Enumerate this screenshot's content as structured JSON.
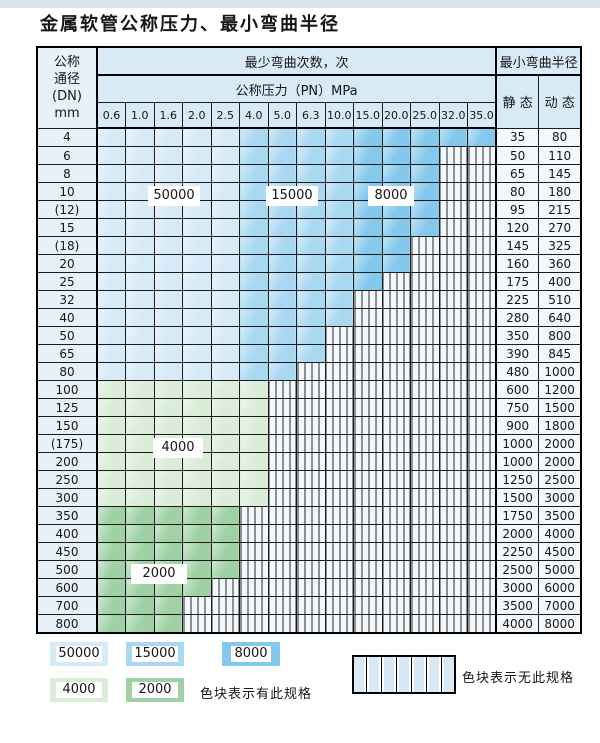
{
  "page": {
    "title": "金属软管公称压力、最小弯曲半径"
  },
  "colors": {
    "strip": "#d8e4ee",
    "header_bg": "#d9eaf7",
    "c50000": "#d6eaf7",
    "c15000": "#a9d8f1",
    "c8000": "#84c9ec",
    "c4000": "#dbecd9",
    "c2000": "#9fd1a5"
  },
  "header": {
    "dn_lines": [
      "公称",
      "通径",
      "(DN)",
      "mm"
    ],
    "cycles_label": "最少弯曲次数，次",
    "pressure_label": "公称压力（PN）MPa",
    "radius_label": "最小弯曲半径",
    "static_label": "静 态",
    "dynamic_label": "动 态",
    "pressure_columns": [
      "0.6",
      "1.0",
      "1.6",
      "2.0",
      "2.5",
      "4.0",
      "5.0",
      "6.3",
      "10.0",
      "15.0",
      "20.0",
      "25.0",
      "32.0",
      "35.0"
    ]
  },
  "zone_labels": {
    "z50000": "50000",
    "z15000": "15000",
    "z8000": "8000",
    "z4000": "4000",
    "z2000": "2000"
  },
  "rows": [
    {
      "dn": "4",
      "zone": "blue",
      "colored": 14,
      "static": "35",
      "dynamic": "80"
    },
    {
      "dn": "6",
      "zone": "blue",
      "colored": 12,
      "static": "50",
      "dynamic": "110"
    },
    {
      "dn": "8",
      "zone": "blue",
      "colored": 12,
      "static": "65",
      "dynamic": "145"
    },
    {
      "dn": "10",
      "zone": "blue",
      "colored": 12,
      "static": "80",
      "dynamic": "180"
    },
    {
      "dn": "(12)",
      "zone": "blue",
      "colored": 12,
      "static": "95",
      "dynamic": "215"
    },
    {
      "dn": "15",
      "zone": "blue",
      "colored": 12,
      "static": "120",
      "dynamic": "270"
    },
    {
      "dn": "(18)",
      "zone": "blue",
      "colored": 11,
      "static": "145",
      "dynamic": "325"
    },
    {
      "dn": "20",
      "zone": "blue",
      "colored": 11,
      "static": "160",
      "dynamic": "360"
    },
    {
      "dn": "25",
      "zone": "blue",
      "colored": 10,
      "static": "175",
      "dynamic": "400"
    },
    {
      "dn": "32",
      "zone": "blue",
      "colored": 9,
      "static": "225",
      "dynamic": "510"
    },
    {
      "dn": "40",
      "zone": "blue",
      "colored": 9,
      "static": "280",
      "dynamic": "640"
    },
    {
      "dn": "50",
      "zone": "blue",
      "colored": 8,
      "static": "350",
      "dynamic": "800"
    },
    {
      "dn": "65",
      "zone": "blue",
      "colored": 8,
      "static": "390",
      "dynamic": "845"
    },
    {
      "dn": "80",
      "zone": "blue",
      "colored": 7,
      "static": "480",
      "dynamic": "1000"
    },
    {
      "dn": "100",
      "zone": "g1",
      "colored": 6,
      "static": "600",
      "dynamic": "1200"
    },
    {
      "dn": "125",
      "zone": "g1",
      "colored": 6,
      "static": "750",
      "dynamic": "1500"
    },
    {
      "dn": "150",
      "zone": "g1",
      "colored": 6,
      "static": "900",
      "dynamic": "1800"
    },
    {
      "dn": "(175)",
      "zone": "g1",
      "colored": 6,
      "static": "1000",
      "dynamic": "2000"
    },
    {
      "dn": "200",
      "zone": "g1",
      "colored": 6,
      "static": "1000",
      "dynamic": "2000"
    },
    {
      "dn": "250",
      "zone": "g1",
      "colored": 6,
      "static": "1250",
      "dynamic": "2500"
    },
    {
      "dn": "300",
      "zone": "g1",
      "colored": 6,
      "static": "1500",
      "dynamic": "3000"
    },
    {
      "dn": "350",
      "zone": "g2",
      "colored": 5,
      "static": "1750",
      "dynamic": "3500"
    },
    {
      "dn": "400",
      "zone": "g2",
      "colored": 5,
      "static": "2000",
      "dynamic": "4000"
    },
    {
      "dn": "450",
      "zone": "g2",
      "colored": 5,
      "static": "2250",
      "dynamic": "4500"
    },
    {
      "dn": "500",
      "zone": "g2",
      "colored": 5,
      "static": "2500",
      "dynamic": "5000"
    },
    {
      "dn": "600",
      "zone": "g2",
      "colored": 4,
      "static": "3000",
      "dynamic": "6000"
    },
    {
      "dn": "700",
      "zone": "g2",
      "colored": 3,
      "static": "3500",
      "dynamic": "7000"
    },
    {
      "dn": "800",
      "zone": "g2",
      "colored": 3,
      "static": "4000",
      "dynamic": "8000"
    }
  ],
  "legend": {
    "swatches": [
      {
        "label": "50000"
      },
      {
        "label": "15000"
      },
      {
        "label": "8000"
      },
      {
        "label": "4000"
      },
      {
        "label": "2000"
      }
    ],
    "has_spec_text": "色块表示有此规格",
    "no_spec_text": "色块表示无此规格"
  }
}
